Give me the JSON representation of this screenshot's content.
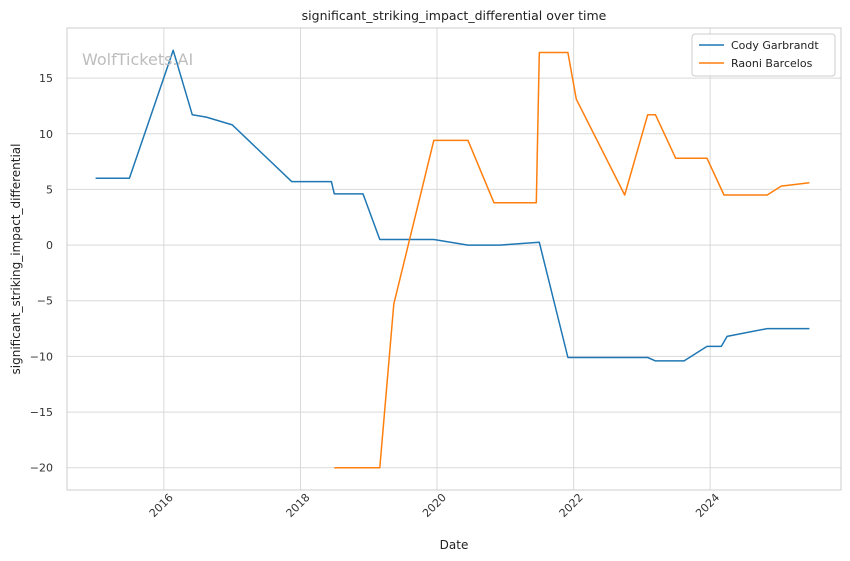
{
  "watermark": "WolfTickets.AI",
  "chart_data": {
    "type": "line",
    "title": "significant_striking_impact_differential over time",
    "xlabel": "Date",
    "ylabel": "significant_striking_impact_differential",
    "xlim": [
      "2014-08-01",
      "2025-12-01"
    ],
    "ylim": [
      -22,
      19.5
    ],
    "x_ticks": [
      "2016",
      "2018",
      "2020",
      "2022",
      "2024"
    ],
    "y_ticks": [
      15,
      10,
      5,
      0,
      -5,
      -10,
      -15,
      -20
    ],
    "y_tick_labels": [
      "15",
      "10",
      "5",
      "0",
      "−5",
      "−10",
      "−15",
      "−20"
    ],
    "grid": true,
    "legend_position": "top-right",
    "series": [
      {
        "name": "Cody Garbrandt",
        "color": "#1f77b4",
        "points": [
          {
            "x": "2015-01-01",
            "y": 6.0
          },
          {
            "x": "2015-07-01",
            "y": 6.0
          },
          {
            "x": "2016-02-20",
            "y": 17.5
          },
          {
            "x": "2016-06-01",
            "y": 11.7
          },
          {
            "x": "2016-08-15",
            "y": 11.5
          },
          {
            "x": "2017-01-01",
            "y": 10.8
          },
          {
            "x": "2017-11-15",
            "y": 5.7
          },
          {
            "x": "2018-06-15",
            "y": 5.7
          },
          {
            "x": "2018-07-01",
            "y": 4.6
          },
          {
            "x": "2018-12-01",
            "y": 4.6
          },
          {
            "x": "2019-03-01",
            "y": 0.5
          },
          {
            "x": "2019-12-15",
            "y": 0.5
          },
          {
            "x": "2020-06-15",
            "y": 0.0
          },
          {
            "x": "2020-12-01",
            "y": 0.0
          },
          {
            "x": "2021-07-01",
            "y": 0.25
          },
          {
            "x": "2021-12-01",
            "y": -10.1
          },
          {
            "x": "2023-02-01",
            "y": -10.1
          },
          {
            "x": "2023-03-15",
            "y": -10.4
          },
          {
            "x": "2023-08-15",
            "y": -10.4
          },
          {
            "x": "2023-12-15",
            "y": -9.1
          },
          {
            "x": "2024-03-01",
            "y": -9.1
          },
          {
            "x": "2024-04-01",
            "y": -8.2
          },
          {
            "x": "2024-11-01",
            "y": -7.5
          },
          {
            "x": "2025-06-15",
            "y": -7.5
          }
        ]
      },
      {
        "name": "Raoni Barcelos",
        "color": "#ff7f0e",
        "points": [
          {
            "x": "2018-07-01",
            "y": -20.0
          },
          {
            "x": "2019-03-01",
            "y": -20.0
          },
          {
            "x": "2019-05-15",
            "y": -5.3
          },
          {
            "x": "2019-12-15",
            "y": 9.4
          },
          {
            "x": "2020-06-15",
            "y": 9.4
          },
          {
            "x": "2020-11-01",
            "y": 3.8
          },
          {
            "x": "2021-06-15",
            "y": 3.8
          },
          {
            "x": "2021-07-01",
            "y": 17.3
          },
          {
            "x": "2021-12-01",
            "y": 17.3
          },
          {
            "x": "2022-01-15",
            "y": 13.1
          },
          {
            "x": "2022-10-01",
            "y": 4.5
          },
          {
            "x": "2023-02-01",
            "y": 11.7
          },
          {
            "x": "2023-03-15",
            "y": 11.7
          },
          {
            "x": "2023-07-01",
            "y": 7.8
          },
          {
            "x": "2023-12-15",
            "y": 7.8
          },
          {
            "x": "2024-03-15",
            "y": 4.5
          },
          {
            "x": "2024-11-01",
            "y": 4.5
          },
          {
            "x": "2025-01-15",
            "y": 5.3
          },
          {
            "x": "2025-06-15",
            "y": 5.6
          }
        ]
      }
    ]
  }
}
